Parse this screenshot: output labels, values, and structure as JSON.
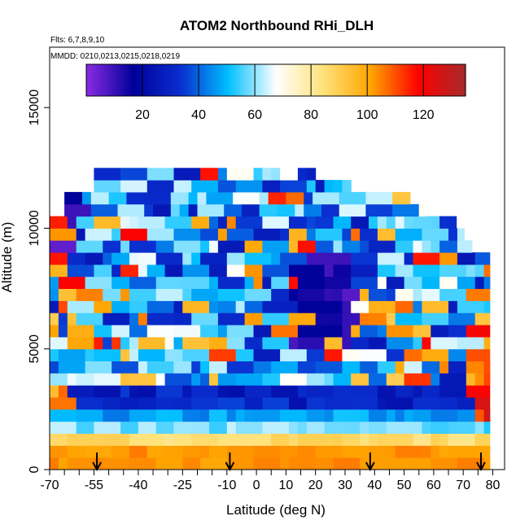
{
  "chart_data": {
    "type": "heatmap",
    "title": "ATOM2 Northbound RHi_DLH",
    "flights_label": "Flts: 6,7,8,9,10",
    "dates_label": "MMDD: 0210,0213,0215,0218,0219",
    "xlabel": "Latitude (deg N)",
    "ylabel": "Altitude (m)",
    "xlim": [
      -70,
      84
    ],
    "ylim": [
      0,
      17500
    ],
    "x_ticks": [
      -70,
      -55,
      -40,
      -25,
      -10,
      0,
      10,
      20,
      30,
      40,
      50,
      60,
      70,
      80
    ],
    "x_minor_ticks": [
      -65,
      -60,
      -50,
      -45,
      -35,
      -30,
      -20,
      -15,
      -5,
      5,
      15,
      25,
      35,
      45,
      55,
      65,
      75
    ],
    "y_ticks": [
      0,
      5000,
      10000,
      15000
    ],
    "colorbar": {
      "range": [
        0,
        135
      ],
      "ticks": [
        20,
        40,
        60,
        80,
        100,
        120
      ],
      "dividers": [
        20,
        40,
        60,
        80,
        100,
        120
      ],
      "colors": [
        "#8a2be2",
        "#00009a",
        "#0a2fd0",
        "#00bfff",
        "#ffffff",
        "#ffe27a",
        "#ffa500",
        "#ff0000",
        "#a52a2a"
      ]
    },
    "altitude_bins": [
      0,
      500,
      1000,
      1500,
      2000,
      2500,
      3000,
      3500,
      4000,
      4500,
      5000,
      5500,
      6000,
      6500,
      7000,
      7500,
      8000,
      8500,
      9000,
      9500,
      10000,
      10500,
      11000,
      11500,
      12000
    ],
    "arrow_latitudes": [
      -54,
      -9,
      38.5,
      76
    ]
  }
}
